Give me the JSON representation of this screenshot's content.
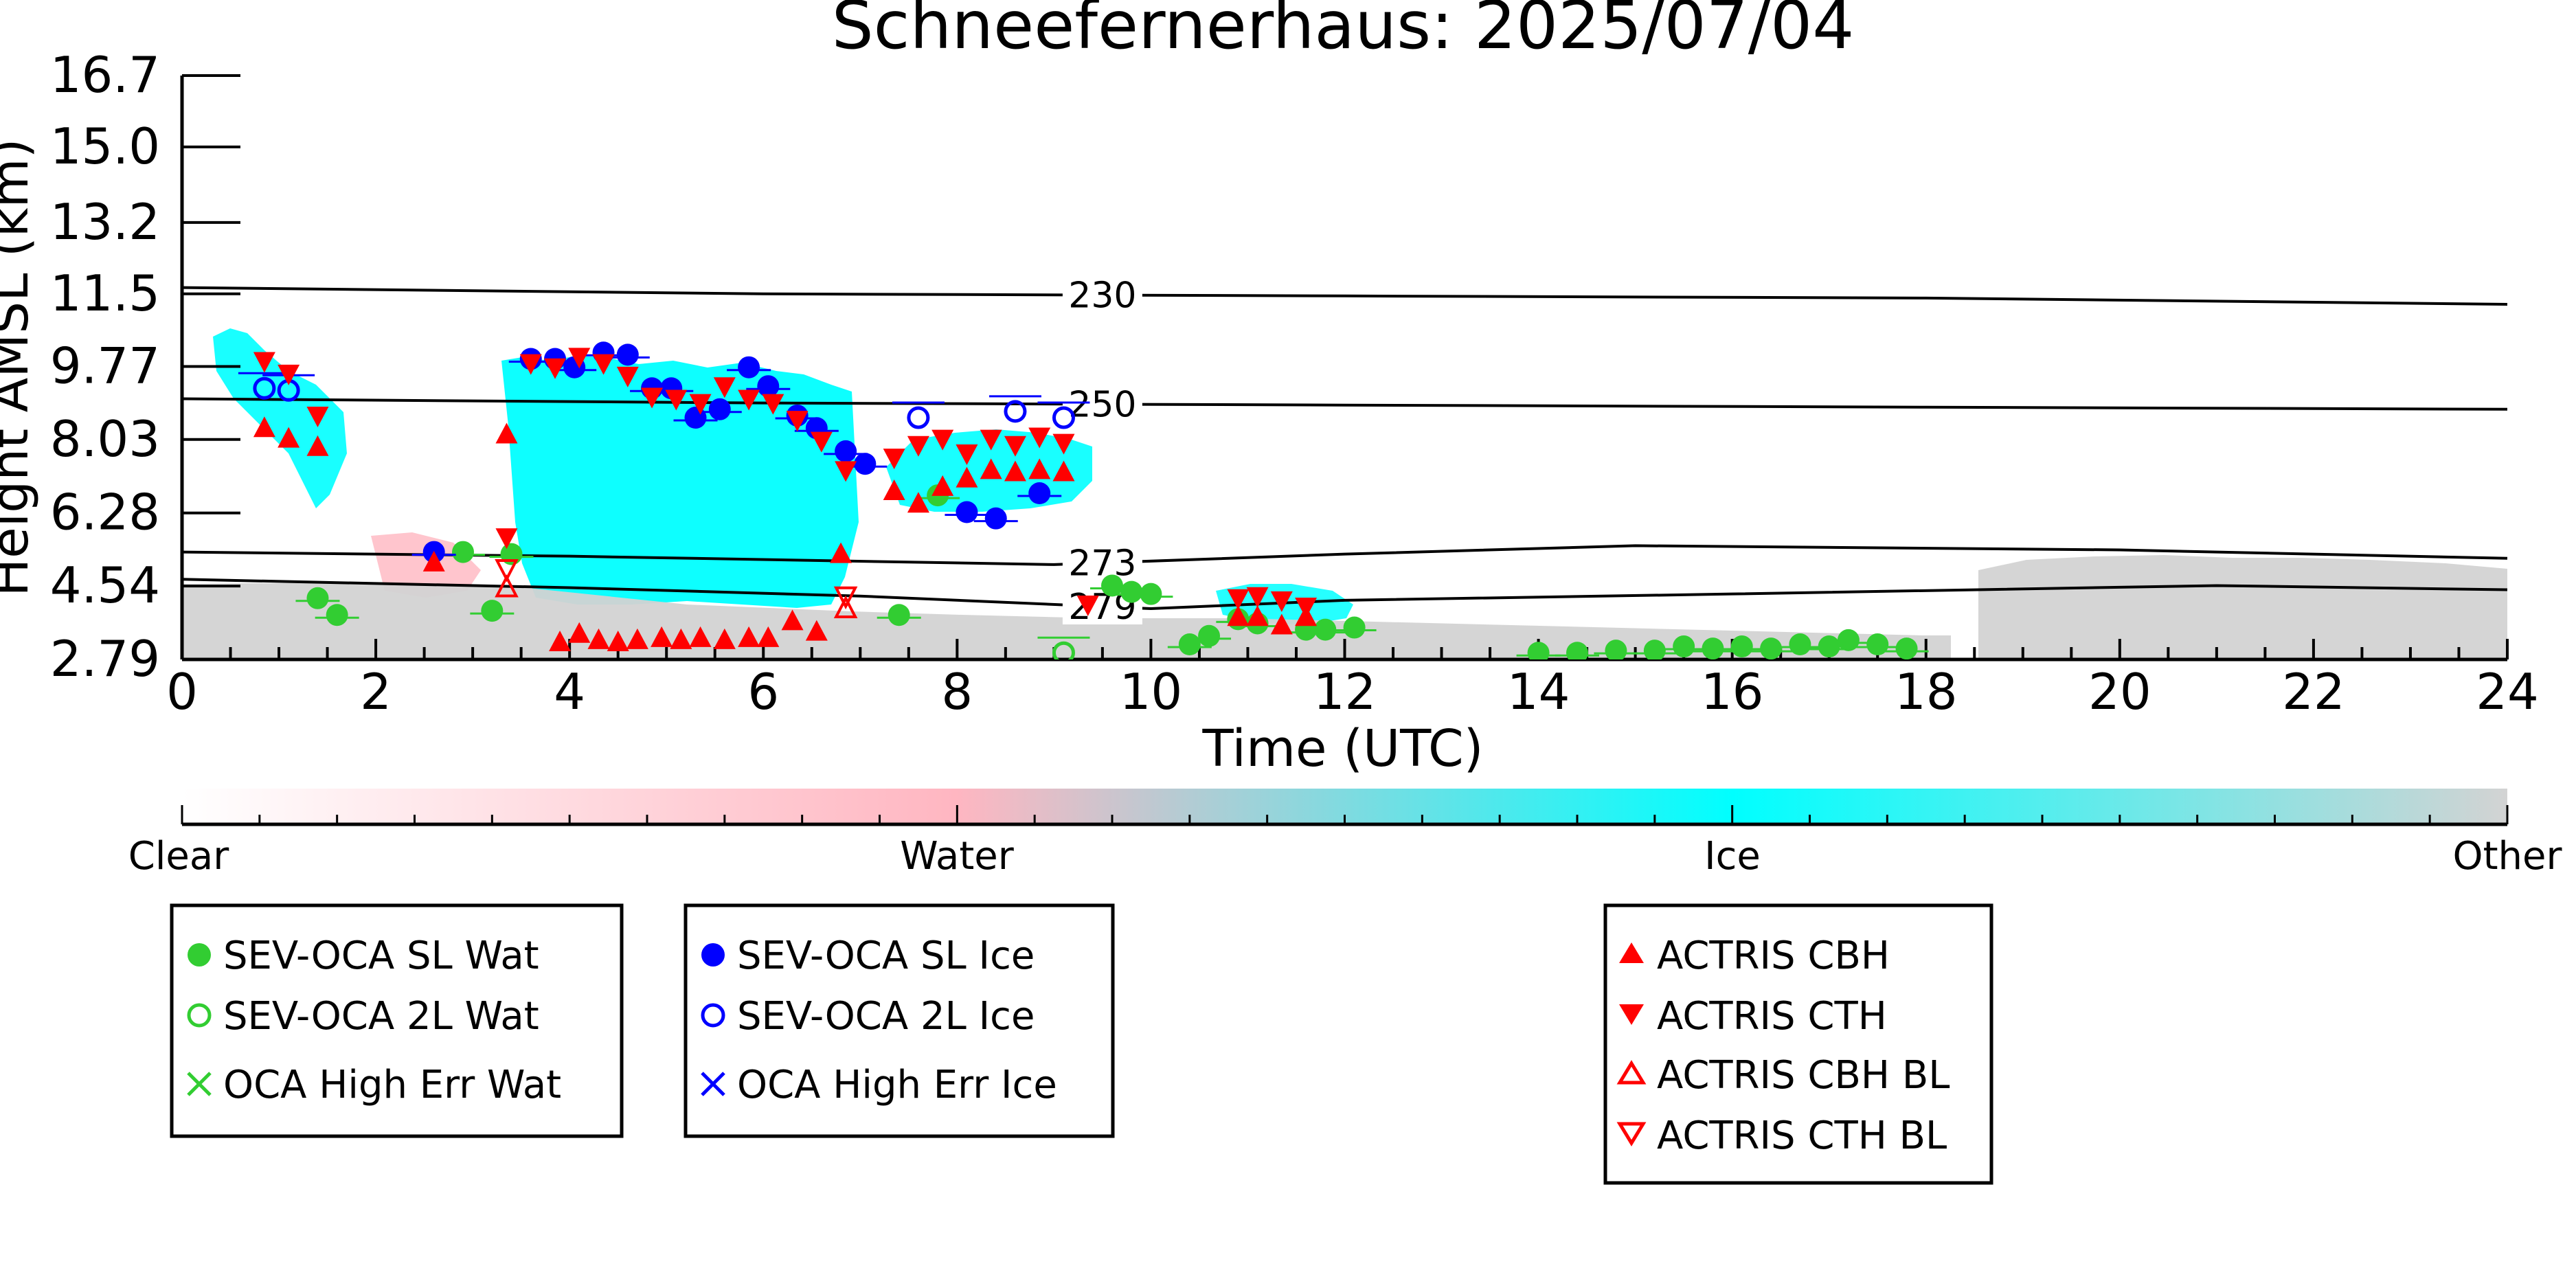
{
  "chart_data": {
    "type": "scatter",
    "title": "Schneefernerhaus: 2025/07/04",
    "xlabel": "Time (UTC)",
    "ylabel": "Height AMSL (km)",
    "xlim": [
      0,
      24
    ],
    "ylim": [
      2.79,
      16.7
    ],
    "x_ticks": [
      "0",
      "2",
      "4",
      "6",
      "8",
      "10",
      "12",
      "14",
      "16",
      "18",
      "20",
      "22",
      "24"
    ],
    "y_ticks": [
      "2.79",
      "4.54",
      "6.28",
      "8.03",
      "9.77",
      "11.5",
      "13.2",
      "15.0",
      "16.7"
    ],
    "isotherms": [
      {
        "label": "230",
        "label_x": 9.5,
        "points": [
          [
            0,
            11.65
          ],
          [
            6,
            11.5
          ],
          [
            12,
            11.45
          ],
          [
            18,
            11.4
          ],
          [
            24,
            11.25
          ]
        ]
      },
      {
        "label": "250",
        "label_x": 9.5,
        "points": [
          [
            0,
            9.0
          ],
          [
            6,
            8.9
          ],
          [
            12,
            8.85
          ],
          [
            18,
            8.8
          ],
          [
            24,
            8.75
          ]
        ]
      },
      {
        "label": "273",
        "label_x": 9.5,
        "points": [
          [
            0,
            5.35
          ],
          [
            4,
            5.25
          ],
          [
            9,
            5.05
          ],
          [
            12,
            5.3
          ],
          [
            15,
            5.5
          ],
          [
            20,
            5.4
          ],
          [
            24,
            5.2
          ]
        ]
      },
      {
        "label": "279",
        "label_x": 9.5,
        "points": [
          [
            0,
            4.7
          ],
          [
            4,
            4.5
          ],
          [
            7,
            4.3
          ],
          [
            10,
            4.0
          ],
          [
            12,
            4.2
          ],
          [
            16,
            4.35
          ],
          [
            21,
            4.55
          ],
          [
            24,
            4.45
          ]
        ]
      }
    ],
    "colorbar": {
      "labels": [
        "Clear",
        "Water",
        "Ice",
        "Other"
      ],
      "colors": [
        "#ffffff",
        "#ffb6c1",
        "#00ffff",
        "#d3d3d3"
      ]
    },
    "legend_groups": [
      [
        "SEV-OCA SL Wat",
        "SEV-OCA 2L Wat",
        "OCA High Err Wat"
      ],
      [
        "SEV-OCA SL Ice",
        "SEV-OCA 2L Ice",
        "OCA High Err Ice"
      ],
      [
        "ACTRIS CBH",
        "ACTRIS CTH",
        "ACTRIS CBH BL",
        "ACTRIS CTH BL"
      ]
    ],
    "series": [
      {
        "name": "SEV-OCA SL Wat",
        "color": "#32cd32",
        "marker": "circle-filled",
        "x": [
          1.4,
          1.6,
          2.9,
          3.2,
          3.4,
          7.4,
          7.8,
          9.6,
          9.8,
          10.0,
          10.4,
          10.6,
          10.9,
          11.1,
          11.6,
          11.8,
          12.1,
          14.0,
          14.4,
          14.8,
          15.2,
          15.5,
          15.8,
          16.1,
          16.4,
          16.7,
          17.0,
          17.2,
          17.5,
          17.8
        ],
        "y": [
          4.25,
          3.85,
          5.35,
          3.95,
          5.3,
          3.85,
          6.7,
          4.55,
          4.4,
          4.35,
          3.15,
          3.35,
          3.75,
          3.65,
          3.5,
          3.5,
          3.55,
          2.95,
          2.95,
          3.0,
          3.0,
          3.1,
          3.05,
          3.1,
          3.05,
          3.15,
          3.1,
          3.25,
          3.15,
          3.05
        ]
      },
      {
        "name": "SEV-OCA 2L Wat",
        "color": "#32cd32",
        "marker": "circle-open",
        "x": [
          9.1
        ],
        "y": [
          2.95
        ]
      },
      {
        "name": "SEV-OCA SL Ice",
        "color": "#0000ff",
        "marker": "circle-filled",
        "x": [
          2.6,
          3.6,
          3.85,
          4.05,
          4.35,
          4.6,
          4.85,
          5.05,
          5.3,
          5.55,
          5.85,
          6.05,
          6.35,
          6.55,
          6.85,
          7.05,
          8.1,
          8.4,
          8.85
        ],
        "y": [
          5.35,
          9.95,
          9.95,
          9.75,
          10.1,
          10.05,
          9.25,
          9.25,
          8.55,
          8.75,
          9.75,
          9.3,
          8.6,
          8.3,
          7.75,
          7.45,
          6.3,
          6.15,
          6.75
        ]
      },
      {
        "name": "SEV-OCA 2L Ice",
        "color": "#0000ff",
        "marker": "circle-open",
        "x": [
          0.85,
          1.1,
          7.6,
          8.6,
          9.1
        ],
        "y": [
          9.25,
          9.2,
          8.55,
          8.7,
          8.55
        ]
      },
      {
        "name": "ACTRIS CBH",
        "color": "#ff0000",
        "marker": "triangle-up",
        "x": [
          0.85,
          1.1,
          1.4,
          2.6,
          3.35,
          3.9,
          4.1,
          4.3,
          4.5,
          4.7,
          4.95,
          5.15,
          5.35,
          5.6,
          5.85,
          6.05,
          6.3,
          6.55,
          6.8,
          7.35,
          7.6,
          7.85,
          8.1,
          8.35,
          8.6,
          8.85,
          9.1,
          10.9,
          11.1,
          11.35,
          11.6
        ],
        "y": [
          8.3,
          8.05,
          7.85,
          5.1,
          8.15,
          3.2,
          3.4,
          3.25,
          3.2,
          3.25,
          3.3,
          3.25,
          3.3,
          3.25,
          3.3,
          3.3,
          3.7,
          3.45,
          5.3,
          6.8,
          6.5,
          6.9,
          7.1,
          7.3,
          7.25,
          7.3,
          7.25,
          3.8,
          3.8,
          3.6,
          3.8
        ],
        "note": ""
      },
      {
        "name": "ACTRIS CTH",
        "color": "#ff0000",
        "marker": "triangle-down",
        "x": [
          0.85,
          1.1,
          1.4,
          3.35,
          3.6,
          3.85,
          4.1,
          4.35,
          4.6,
          4.85,
          5.1,
          5.35,
          5.6,
          5.85,
          6.1,
          6.35,
          6.6,
          6.85,
          7.35,
          7.6,
          7.85,
          8.1,
          8.35,
          8.6,
          8.85,
          9.1,
          9.35,
          10.9,
          11.1,
          11.35,
          11.6
        ],
        "y": [
          9.9,
          9.6,
          8.6,
          5.7,
          9.85,
          9.75,
          10.0,
          9.85,
          9.55,
          9.05,
          9.0,
          8.9,
          9.3,
          9.0,
          8.9,
          8.5,
          8.0,
          7.3,
          7.6,
          7.9,
          8.05,
          7.7,
          8.05,
          7.9,
          8.1,
          7.95,
          4.1,
          4.25,
          4.3,
          4.2,
          4.05
        ]
      },
      {
        "name": "ACTRIS CBH BL",
        "color": "#ff0000",
        "marker": "triangle-up-open",
        "x": [
          3.35,
          6.85
        ],
        "y": [
          4.5,
          4.0
        ]
      },
      {
        "name": "ACTRIS CTH BL",
        "color": "#ff0000",
        "marker": "triangle-down-open",
        "x": [
          3.35,
          6.85
        ],
        "y": [
          4.95,
          4.3
        ]
      }
    ]
  }
}
